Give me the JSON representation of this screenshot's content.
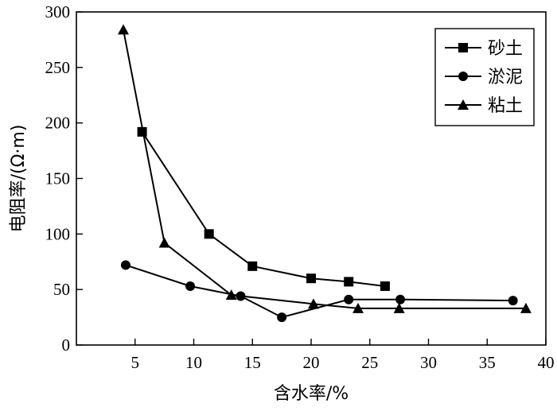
{
  "chart_data": {
    "type": "line",
    "title": "",
    "xlabel": "含水率/%",
    "ylabel": "电阻率/(Ω·m)",
    "xlim": [
      0,
      40
    ],
    "ylim": [
      0,
      300
    ],
    "xticks": [
      5,
      10,
      15,
      20,
      25,
      30,
      35,
      40
    ],
    "yticks": [
      0,
      50,
      100,
      150,
      200,
      250,
      300
    ],
    "grid": false,
    "legend_position": "top-right",
    "series": [
      {
        "name": "砂土",
        "marker": "square",
        "color": "#000000",
        "x": [
          5.6,
          11.3,
          15.0,
          20.0,
          23.2,
          26.3
        ],
        "y": [
          192,
          100,
          71,
          60,
          57,
          53
        ]
      },
      {
        "name": "淤泥",
        "marker": "circle",
        "color": "#000000",
        "x": [
          4.2,
          9.7,
          14.0,
          17.5,
          23.2,
          27.6,
          37.2
        ],
        "y": [
          72,
          53,
          44,
          25,
          41,
          41,
          40
        ]
      },
      {
        "name": "粘土",
        "marker": "triangle",
        "color": "#000000",
        "x": [
          4.0,
          7.5,
          13.2,
          20.2,
          24.0,
          27.5,
          38.3
        ],
        "y": [
          284,
          92,
          45,
          37,
          33,
          33,
          33
        ]
      }
    ]
  }
}
